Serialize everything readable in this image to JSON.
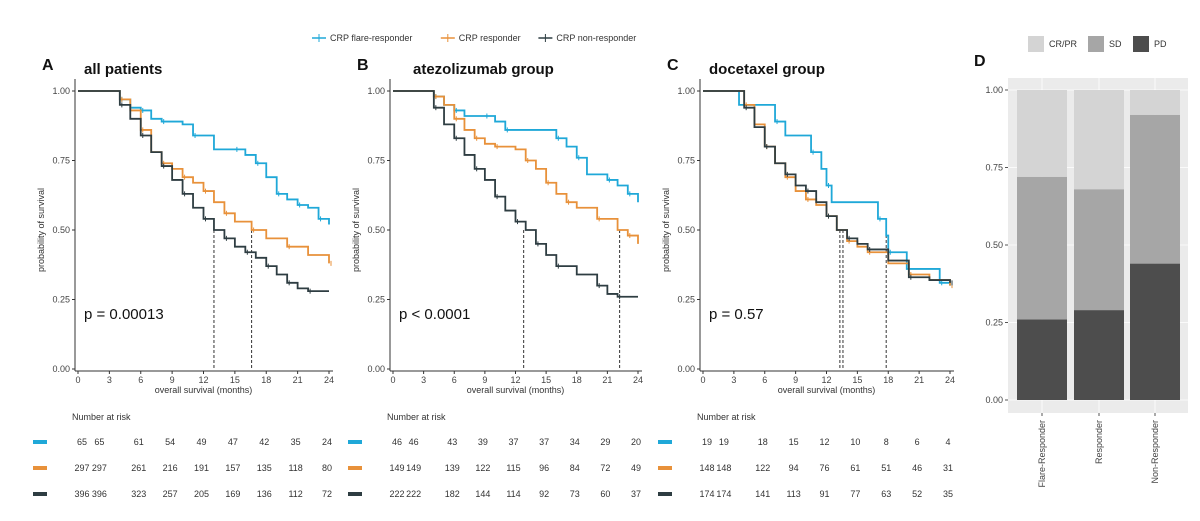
{
  "legend": {
    "items": [
      {
        "name": "CRP flare-responder",
        "color": "#1fa8d8"
      },
      {
        "name": "CRP responder",
        "color": "#e8913a"
      },
      {
        "name": "CRP non-responder",
        "color": "#2e3d42"
      }
    ]
  },
  "chart_data": [
    {
      "type": "line",
      "panel": "A",
      "title": "all patients",
      "xlabel": "overall survival (months)",
      "ylabel": "probability of survival",
      "xlim": [
        0,
        24
      ],
      "ylim": [
        0,
        1
      ],
      "xticks": [
        "0",
        "3",
        "6",
        "9",
        "12",
        "15",
        "18",
        "21",
        "24"
      ],
      "yticks": [
        "0.00",
        "0.25",
        "0.50",
        "0.75",
        "1.00"
      ],
      "annotation": "p = 0.00013",
      "median_lines": [
        13,
        16.6
      ],
      "series": [
        {
          "name": "CRP flare-responder",
          "x": [
            0,
            3,
            4,
            5,
            6,
            7,
            8,
            10,
            11,
            13,
            15,
            16,
            17,
            18,
            19,
            20,
            21,
            22,
            23,
            24
          ],
          "y": [
            1,
            1,
            0.97,
            0.94,
            0.93,
            0.9,
            0.89,
            0.88,
            0.84,
            0.79,
            0.79,
            0.77,
            0.74,
            0.69,
            0.63,
            0.61,
            0.59,
            0.58,
            0.54,
            0.52
          ]
        },
        {
          "name": "CRP responder",
          "x": [
            0,
            3,
            4,
            5,
            6,
            7,
            8,
            9,
            10,
            11,
            12,
            13,
            14,
            15,
            16.6,
            18,
            20,
            22,
            24
          ],
          "y": [
            1,
            1,
            0.97,
            0.93,
            0.86,
            0.78,
            0.74,
            0.72,
            0.69,
            0.67,
            0.64,
            0.6,
            0.56,
            0.53,
            0.5,
            0.47,
            0.44,
            0.41,
            0.38
          ]
        },
        {
          "name": "CRP non-responder",
          "x": [
            0,
            3,
            4,
            5,
            6,
            7,
            8,
            9,
            10,
            11,
            12,
            13,
            14,
            15,
            16,
            17,
            18,
            19,
            20,
            21,
            22,
            24
          ],
          "y": [
            1,
            1,
            0.95,
            0.9,
            0.84,
            0.78,
            0.73,
            0.68,
            0.63,
            0.58,
            0.54,
            0.5,
            0.47,
            0.44,
            0.42,
            0.4,
            0.37,
            0.34,
            0.31,
            0.29,
            0.28,
            0.28
          ]
        }
      ],
      "risk_table": {
        "title": "Number at risk",
        "rows": [
          [
            65,
            65,
            61,
            54,
            49,
            47,
            42,
            35,
            24
          ],
          [
            297,
            297,
            261,
            216,
            191,
            157,
            135,
            118,
            80
          ],
          [
            396,
            396,
            323,
            257,
            205,
            169,
            136,
            112,
            72
          ]
        ]
      }
    },
    {
      "type": "line",
      "panel": "B",
      "title": "atezolizumab group",
      "xlabel": "overall survival (months)",
      "ylabel": "probability of survival",
      "xlim": [
        0,
        24
      ],
      "ylim": [
        0,
        1
      ],
      "xticks": [
        "0",
        "3",
        "6",
        "9",
        "12",
        "15",
        "18",
        "21",
        "24"
      ],
      "yticks": [
        "0.00",
        "0.25",
        "0.50",
        "0.75",
        "1.00"
      ],
      "annotation": "p < 0.0001",
      "median_lines": [
        12.8,
        22.2
      ],
      "series": [
        {
          "name": "CRP flare-responder",
          "x": [
            0,
            3,
            4,
            5,
            6,
            7,
            9,
            10,
            11,
            15,
            16,
            17,
            18,
            19,
            21,
            22,
            23,
            24
          ],
          "y": [
            1,
            1,
            0.98,
            0.95,
            0.93,
            0.91,
            0.91,
            0.89,
            0.86,
            0.86,
            0.83,
            0.8,
            0.76,
            0.7,
            0.68,
            0.66,
            0.63,
            0.6
          ]
        },
        {
          "name": "CRP responder",
          "x": [
            0,
            3,
            4,
            5,
            6,
            7,
            8,
            9,
            10,
            12,
            13,
            14,
            15,
            16,
            17,
            18,
            20,
            22,
            23,
            24
          ],
          "y": [
            1,
            1,
            0.98,
            0.95,
            0.9,
            0.86,
            0.83,
            0.81,
            0.8,
            0.79,
            0.75,
            0.72,
            0.67,
            0.63,
            0.6,
            0.58,
            0.54,
            0.5,
            0.48,
            0.45
          ]
        },
        {
          "name": "CRP non-responder",
          "x": [
            0,
            3,
            4,
            5,
            6,
            7,
            8,
            9,
            10,
            11,
            12,
            13,
            14,
            15,
            16,
            18,
            20,
            21,
            22,
            24
          ],
          "y": [
            1,
            1,
            0.94,
            0.88,
            0.83,
            0.77,
            0.72,
            0.68,
            0.62,
            0.57,
            0.53,
            0.5,
            0.45,
            0.41,
            0.37,
            0.34,
            0.3,
            0.27,
            0.26,
            0.26
          ]
        }
      ],
      "risk_table": {
        "title": "Number at risk",
        "rows": [
          [
            46,
            46,
            43,
            39,
            37,
            37,
            34,
            29,
            20
          ],
          [
            149,
            149,
            139,
            122,
            115,
            96,
            84,
            72,
            49
          ],
          [
            222,
            222,
            182,
            144,
            114,
            92,
            73,
            60,
            37
          ]
        ]
      }
    },
    {
      "type": "line",
      "panel": "C",
      "title": "docetaxel group",
      "xlabel": "overall survival (months)",
      "ylabel": "probability of survival",
      "xlim": [
        0,
        24
      ],
      "ylim": [
        0,
        1
      ],
      "xticks": [
        "0",
        "3",
        "6",
        "9",
        "12",
        "15",
        "18",
        "21",
        "24"
      ],
      "yticks": [
        "0.00",
        "0.25",
        "0.50",
        "0.75",
        "1.00"
      ],
      "annotation": "p = 0.57",
      "median_lines": [
        13.3,
        13.6,
        17.8
      ],
      "series": [
        {
          "name": "CRP flare-responder",
          "x": [
            0,
            3.5,
            7,
            8,
            10.5,
            11.5,
            12,
            12.5,
            17,
            17.8,
            18,
            19.8,
            23,
            24
          ],
          "y": [
            1,
            0.95,
            0.89,
            0.84,
            0.78,
            0.72,
            0.66,
            0.6,
            0.54,
            0.48,
            0.42,
            0.36,
            0.31,
            0.3
          ]
        },
        {
          "name": "CRP responder",
          "x": [
            0,
            3,
            4,
            5,
            6,
            7,
            8,
            9,
            10,
            11,
            12,
            13,
            14,
            15,
            16,
            18,
            20,
            22,
            24
          ],
          "y": [
            1,
            1,
            0.95,
            0.88,
            0.8,
            0.74,
            0.69,
            0.64,
            0.61,
            0.59,
            0.55,
            0.5,
            0.46,
            0.44,
            0.42,
            0.38,
            0.34,
            0.32,
            0.3
          ]
        },
        {
          "name": "CRP non-responder",
          "x": [
            0,
            3,
            4,
            5,
            6,
            7,
            8,
            9,
            10,
            11,
            12,
            13,
            14,
            15,
            16,
            18,
            20,
            22,
            24
          ],
          "y": [
            1,
            1,
            0.94,
            0.87,
            0.8,
            0.74,
            0.7,
            0.66,
            0.64,
            0.6,
            0.55,
            0.5,
            0.47,
            0.45,
            0.43,
            0.39,
            0.33,
            0.32,
            0.31
          ]
        }
      ],
      "risk_table": {
        "title": "Number at risk",
        "rows": [
          [
            19,
            19,
            18,
            15,
            12,
            10,
            8,
            6,
            4
          ],
          [
            148,
            148,
            122,
            94,
            76,
            61,
            51,
            46,
            31
          ],
          [
            174,
            174,
            141,
            113,
            91,
            77,
            63,
            52,
            35
          ]
        ]
      }
    },
    {
      "type": "bar",
      "panel": "D",
      "stacked": true,
      "categories": [
        "Flare-Responder",
        "Responder",
        "Non-Responder"
      ],
      "ylim": [
        0,
        1
      ],
      "yticks": [
        "0.00",
        "0.25",
        "0.50",
        "0.75",
        "1.00"
      ],
      "legend_position": "top",
      "series": [
        {
          "name": "PD",
          "color": "#4d4d4d",
          "values": [
            0.26,
            0.29,
            0.44
          ]
        },
        {
          "name": "SD",
          "color": "#a6a6a6",
          "values": [
            0.46,
            0.39,
            0.48
          ]
        },
        {
          "name": "CR/PR",
          "color": "#d4d4d4",
          "values": [
            0.28,
            0.32,
            0.08
          ]
        }
      ]
    }
  ]
}
